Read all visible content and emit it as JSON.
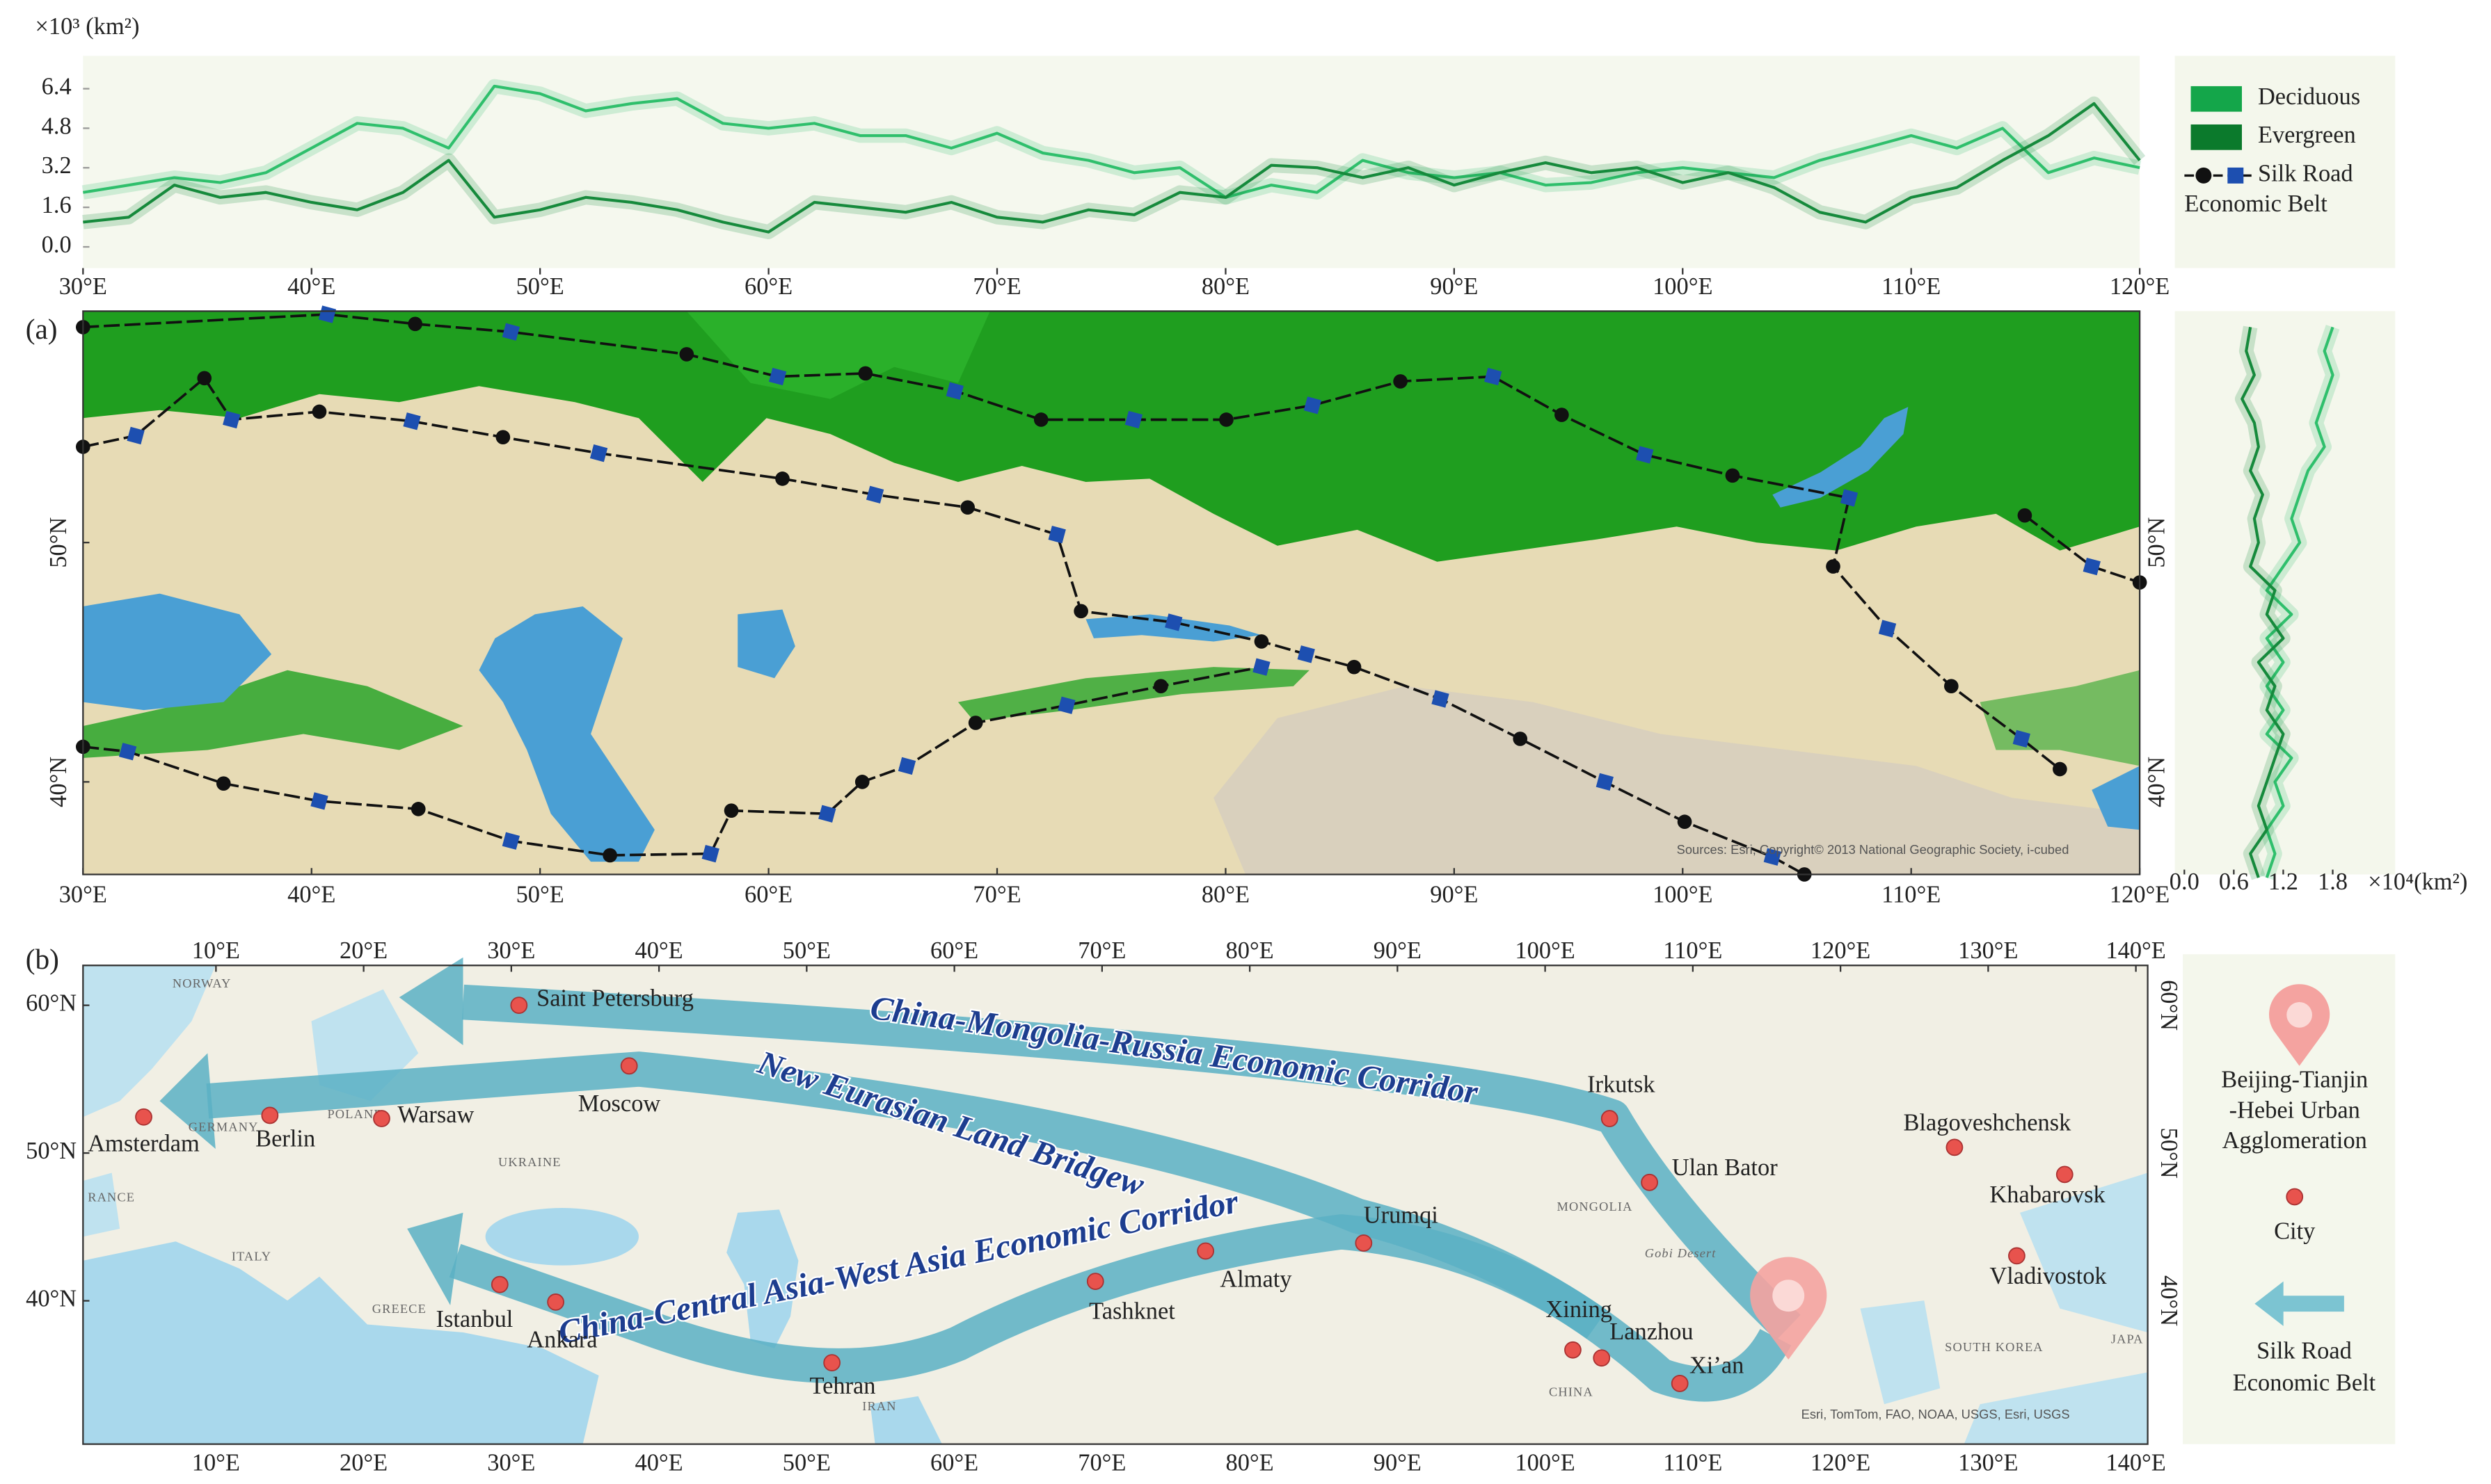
{
  "chart_data": [
    {
      "type": "line",
      "y_label": "×10³ (km²)",
      "x": [
        30,
        32,
        34,
        36,
        38,
        40,
        42,
        44,
        46,
        48,
        50,
        52,
        54,
        56,
        58,
        60,
        62,
        64,
        66,
        68,
        70,
        72,
        74,
        76,
        78,
        80,
        82,
        84,
        86,
        88,
        90,
        92,
        94,
        96,
        98,
        100,
        102,
        104,
        106,
        108,
        110,
        112,
        114,
        116,
        118,
        120
      ],
      "series": [
        {
          "name": "Deciduous",
          "color": "#2fbf6c",
          "legend_color": "#14a64a",
          "values": [
            2.2,
            2.5,
            2.8,
            2.6,
            3.0,
            4.0,
            5.0,
            4.8,
            4.0,
            6.5,
            6.2,
            5.5,
            5.8,
            6.0,
            5.0,
            4.8,
            5.0,
            4.5,
            4.5,
            4.0,
            4.6,
            3.8,
            3.5,
            3.0,
            3.2,
            2.0,
            2.5,
            2.2,
            3.5,
            3.0,
            2.8,
            3.0,
            2.5,
            2.6,
            3.0,
            3.2,
            3.0,
            2.8,
            3.5,
            4.0,
            4.5,
            4.0,
            4.8,
            3.0,
            3.6,
            3.2
          ]
        },
        {
          "name": "Evergreen",
          "color": "#168a3c",
          "legend_color": "#0b7a2c",
          "values": [
            1.0,
            1.2,
            2.5,
            2.0,
            2.2,
            1.8,
            1.5,
            2.2,
            3.5,
            1.2,
            1.5,
            2.0,
            1.8,
            1.5,
            1.0,
            0.6,
            1.8,
            1.6,
            1.4,
            1.8,
            1.2,
            1.0,
            1.5,
            1.3,
            2.2,
            2.0,
            3.3,
            3.2,
            2.8,
            3.2,
            2.5,
            3.0,
            3.4,
            3.0,
            3.2,
            2.6,
            3.0,
            2.4,
            1.4,
            1.0,
            2.0,
            2.4,
            3.5,
            4.5,
            5.8,
            3.5
          ]
        }
      ],
      "shaded_band": true,
      "xlim": [
        30,
        120
      ],
      "xticks": [
        {
          "value": 30,
          "label": "30°E"
        },
        {
          "value": 40,
          "label": "40°E"
        },
        {
          "value": 50,
          "label": "50°E"
        },
        {
          "value": 60,
          "label": "60°E"
        },
        {
          "value": 70,
          "label": "70°E"
        },
        {
          "value": 80,
          "label": "80°E"
        },
        {
          "value": 90,
          "label": "90°E"
        },
        {
          "value": 100,
          "label": "100°E"
        },
        {
          "value": 110,
          "label": "110°E"
        },
        {
          "value": 120,
          "label": "120°E"
        }
      ],
      "ylim": [
        -0.6,
        7.6
      ],
      "yticks": [
        {
          "value": 0,
          "label": "0.0"
        },
        1.6,
        3.2,
        4.8,
        6.4
      ],
      "legend": "right"
    },
    {
      "type": "line",
      "orientation": "vertical",
      "x_label": "×10⁴(km²)",
      "y": [
        36,
        37,
        38,
        39,
        40,
        41,
        42,
        43,
        44,
        45,
        46,
        47,
        48,
        49,
        50,
        51,
        52,
        53,
        54,
        55,
        56,
        57,
        58,
        59
      ],
      "series": [
        {
          "name": "Deciduous",
          "color": "#2fbf6c",
          "values": [
            1.0,
            1.1,
            1.0,
            1.2,
            1.1,
            1.3,
            1.0,
            1.2,
            1.0,
            1.2,
            1.0,
            1.3,
            1.0,
            1.2,
            1.4,
            1.3,
            1.4,
            1.5,
            1.7,
            1.6,
            1.7,
            1.8,
            1.7,
            1.8
          ]
        },
        {
          "name": "Evergreen",
          "color": "#168a3c",
          "values": [
            0.9,
            0.8,
            1.0,
            0.9,
            1.0,
            1.1,
            1.2,
            1.0,
            1.1,
            0.9,
            1.2,
            1.0,
            1.1,
            0.8,
            0.9,
            0.85,
            0.95,
            0.8,
            0.9,
            0.85,
            0.7,
            0.85,
            0.75,
            0.8
          ]
        }
      ],
      "shaded_band": true,
      "xlim": [
        -0.1,
        2.5
      ],
      "xticks": [
        {
          "value": 0,
          "label": "0.0"
        },
        0.6,
        1.2,
        1.8
      ],
      "ylim": [
        36.1,
        59.7
      ]
    }
  ],
  "legend": {
    "route_label_lines": [
      "Silk Road",
      "Economic Belt"
    ]
  },
  "map_a": {
    "panel_label": "(a)",
    "xlim": [
      30,
      120
    ],
    "xticks": [
      {
        "value": 30,
        "label": "30°E"
      },
      {
        "value": 40,
        "label": "40°E"
      },
      {
        "value": 50,
        "label": "50°E"
      },
      {
        "value": 60,
        "label": "60°E"
      },
      {
        "value": 70,
        "label": "70°E"
      },
      {
        "value": 80,
        "label": "80°E"
      },
      {
        "value": 90,
        "label": "90°E"
      },
      {
        "value": 100,
        "label": "100°E"
      },
      {
        "value": 110,
        "label": "110°E"
      },
      {
        "value": 120,
        "label": "120°E"
      }
    ],
    "ylim": [
      36.1,
      59.7
    ],
    "yticks": [
      {
        "value": 40,
        "label": "40°N"
      },
      {
        "value": 50,
        "label": "50°N"
      }
    ],
    "attribution": "Sources: Esri, Copyright© 2013 National Geographic Society, i-cubed"
  },
  "map_b": {
    "panel_label": "(b)",
    "xlim": [
      1.0,
      140.8
    ],
    "xticks": [
      {
        "value": 10,
        "label": "10°E"
      },
      {
        "value": 20,
        "label": "20°E"
      },
      {
        "value": 30,
        "label": "30°E"
      },
      {
        "value": 40,
        "label": "40°E"
      },
      {
        "value": 50,
        "label": "50°E"
      },
      {
        "value": 60,
        "label": "60°E"
      },
      {
        "value": 70,
        "label": "70°E"
      },
      {
        "value": 80,
        "label": "80°E"
      },
      {
        "value": 90,
        "label": "90°E"
      },
      {
        "value": 100,
        "label": "100°E"
      },
      {
        "value": 110,
        "label": "110°E"
      },
      {
        "value": 120,
        "label": "120°E"
      },
      {
        "value": 130,
        "label": "130°E"
      },
      {
        "value": 140,
        "label": "140°E"
      }
    ],
    "ylim": [
      30.3,
      62.7
    ],
    "yticks": [
      {
        "value": 40,
        "label": "40°N"
      },
      {
        "value": 50,
        "label": "50°N"
      },
      {
        "value": 60,
        "label": "60°N"
      }
    ],
    "corridors": [
      "China-Mongolia-Russia Economic Corridor",
      "New Eurasian Land Bridgew",
      "China-Central Asia-West Asia Economic Corridor"
    ],
    "cities": [
      "Saint Petersburg",
      "Moscow",
      "Amsterdam",
      "Berlin",
      "Warsaw",
      "Irkutsk",
      "Ulan Bator",
      "Urumqi",
      "Almaty",
      "Tashknet",
      "Tehran",
      "Istanbul",
      "Ankara",
      "Xining",
      "Lanzhou",
      "Xi’an",
      "Blagoveshchensk",
      "Khabarovsk",
      "Vladivostok"
    ],
    "place_labels": [
      "NORWAY",
      "GERMANY",
      "POLAND",
      "UKRAINE",
      "RANCE",
      "ITALY",
      "GREECE",
      "MONGOLIA",
      "Gobi Desert",
      "CHINA",
      "IRAN",
      "SOUTH KOREA",
      "JAPA"
    ],
    "attribution": "Esri, TomTom, FAO, NOAA, USGS, Esri, USGS",
    "legend": {
      "pin_label_lines": [
        "Beijing-Tianjin",
        "-Hebei Urban",
        "Agglomeration"
      ],
      "city_label": "City",
      "route_label_lines": [
        "Silk Road",
        "Economic Belt"
      ]
    }
  }
}
